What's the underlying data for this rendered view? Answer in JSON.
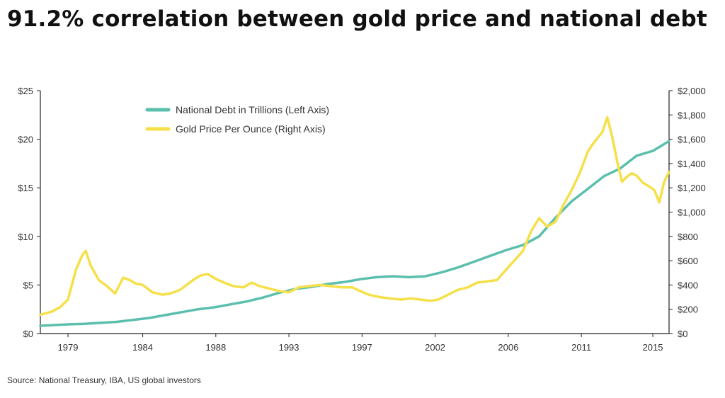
{
  "title": "91.2% correlation between gold price and national debt",
  "source": "Source: National Treasury, IBA, US global investors",
  "colors": {
    "debt": "#5bbfad",
    "gold": "#f5e04a",
    "axis": "#222222"
  },
  "chart_data": {
    "type": "line",
    "title": "91.2% correlation between gold price and national debt",
    "x_range": [
      1977.3,
      2016.0
    ],
    "x_ticks": [
      {
        "value": 1979,
        "label": "1979"
      },
      {
        "value": 1983.6,
        "label": "1984"
      },
      {
        "value": 1988.1,
        "label": "1988"
      },
      {
        "value": 1992.6,
        "label": "1993"
      },
      {
        "value": 1997.1,
        "label": "1997"
      },
      {
        "value": 2001.6,
        "label": "2002"
      },
      {
        "value": 2006.1,
        "label": "2006"
      },
      {
        "value": 2010.6,
        "label": "2011"
      },
      {
        "value": 2015.0,
        "label": "2015"
      }
    ],
    "y_left": {
      "label": "National Debt in Trillions",
      "range": [
        0,
        25
      ],
      "ticks": [
        "$0",
        "$5",
        "$10",
        "$15",
        "$20",
        "$25"
      ],
      "tick_values": [
        0,
        5,
        10,
        15,
        20,
        25
      ]
    },
    "y_right": {
      "label": "Gold Price Per Ounce",
      "range": [
        0,
        2000
      ],
      "ticks": [
        "$0",
        "$200",
        "$400",
        "$600",
        "$800",
        "$1,000",
        "$1,200",
        "$1,400",
        "$1,600",
        "$1,800",
        "$2,000"
      ],
      "tick_values": [
        0,
        200,
        400,
        600,
        800,
        1000,
        1200,
        1400,
        1600,
        1800,
        2000
      ]
    },
    "legend_position": "top-left",
    "series": [
      {
        "name": "National Debt in Trillions (Left Axis)",
        "axis": "left",
        "x": [
          1977.3,
          1979,
          1980,
          1981,
          1982,
          1983,
          1984,
          1985,
          1986,
          1987,
          1988,
          1989,
          1990,
          1991,
          1992,
          1993,
          1994,
          1995,
          1996,
          1997,
          1998,
          1999,
          2000,
          2001,
          2002,
          2003,
          2004,
          2005,
          2006,
          2007,
          2008,
          2009,
          2010,
          2011,
          2012,
          2013,
          2014,
          2015,
          2016
        ],
        "values": [
          0.8,
          0.95,
          1.0,
          1.1,
          1.2,
          1.4,
          1.6,
          1.9,
          2.2,
          2.5,
          2.7,
          3.0,
          3.3,
          3.7,
          4.2,
          4.6,
          4.8,
          5.1,
          5.3,
          5.6,
          5.8,
          5.9,
          5.8,
          5.9,
          6.3,
          6.8,
          7.4,
          8.0,
          8.6,
          9.1,
          10.0,
          11.9,
          13.6,
          14.9,
          16.2,
          17.0,
          18.3,
          18.8,
          19.8
        ]
      },
      {
        "name": "Gold Price Per Ounce (Right Axis)",
        "axis": "right",
        "x": [
          1977.3,
          1978.0,
          1978.5,
          1979.0,
          1979.5,
          1979.9,
          1980.1,
          1980.4,
          1980.9,
          1981.4,
          1981.9,
          1982.4,
          1982.8,
          1983.2,
          1983.6,
          1984.2,
          1984.8,
          1985.3,
          1985.9,
          1986.4,
          1986.8,
          1987.2,
          1987.6,
          1988.1,
          1988.6,
          1989.2,
          1989.8,
          1990.3,
          1990.8,
          1991.4,
          1992.0,
          1992.6,
          1993.2,
          1993.8,
          1994.5,
          1995.2,
          1995.9,
          1996.5,
          1997.0,
          1997.5,
          1998.2,
          1998.8,
          1999.5,
          2000.1,
          2000.7,
          2001.3,
          2001.8,
          2002.4,
          2003.0,
          2003.6,
          2004.2,
          2004.8,
          2005.4,
          2006.0,
          2006.6,
          2007.0,
          2007.5,
          2008.0,
          2008.5,
          2009.0,
          2009.5,
          2010.0,
          2010.5,
          2011.0,
          2011.3,
          2011.6,
          2011.9,
          2012.2,
          2012.5,
          2012.8,
          2013.1,
          2013.4,
          2013.7,
          2014.0,
          2014.4,
          2014.8,
          2015.1,
          2015.4,
          2015.7,
          2016.0
        ],
        "values": [
          155,
          180,
          215,
          280,
          530,
          650,
          680,
          560,
          440,
          390,
          330,
          460,
          440,
          410,
          400,
          340,
          320,
          330,
          360,
          410,
          450,
          480,
          490,
          450,
          420,
          390,
          380,
          420,
          390,
          370,
          350,
          340,
          380,
          390,
          400,
          390,
          380,
          380,
          350,
          320,
          300,
          290,
          280,
          290,
          280,
          270,
          280,
          320,
          360,
          380,
          420,
          430,
          440,
          530,
          620,
          680,
          840,
          950,
          880,
          920,
          1060,
          1180,
          1320,
          1500,
          1560,
          1610,
          1660,
          1780,
          1620,
          1420,
          1250,
          1290,
          1320,
          1300,
          1240,
          1210,
          1180,
          1080,
          1250,
          1330
        ]
      }
    ]
  }
}
